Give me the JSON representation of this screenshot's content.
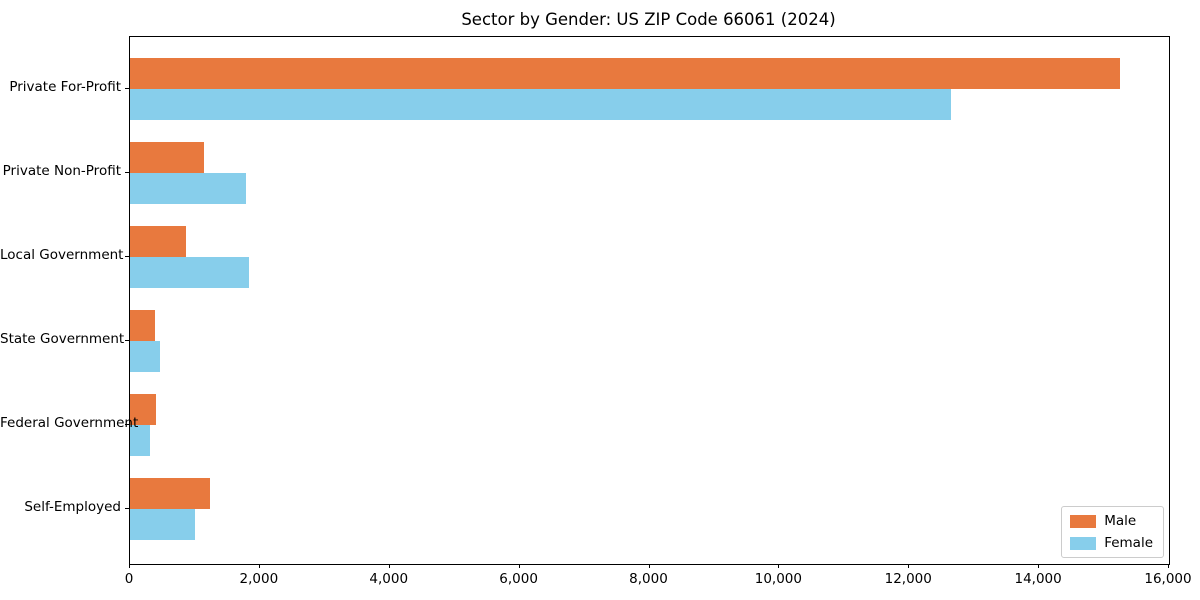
{
  "chart_data": {
    "type": "bar",
    "orientation": "horizontal",
    "title": "Sector by Gender: US ZIP Code 66061 (2024)",
    "categories": [
      "Private For-Profit",
      "Private Non-Profit",
      "Local Government",
      "State Government",
      "Federal Government",
      "Self-Employed"
    ],
    "series": [
      {
        "name": "Male",
        "color": "#e8793e",
        "values": [
          15250,
          1140,
          860,
          385,
          400,
          1230
        ]
      },
      {
        "name": "Female",
        "color": "#87ceeb",
        "values": [
          12640,
          1790,
          1830,
          460,
          310,
          1000
        ]
      }
    ],
    "xlabel": "",
    "ylabel": "",
    "xlim": [
      0,
      16000
    ],
    "xticks": [
      0,
      2000,
      4000,
      6000,
      8000,
      10000,
      12000,
      14000,
      16000
    ],
    "xtick_labels": [
      "0",
      "2,000",
      "4,000",
      "6,000",
      "8,000",
      "10,000",
      "12,000",
      "14,000",
      "16,000"
    ],
    "grid": false,
    "legend_position": "lower right"
  }
}
